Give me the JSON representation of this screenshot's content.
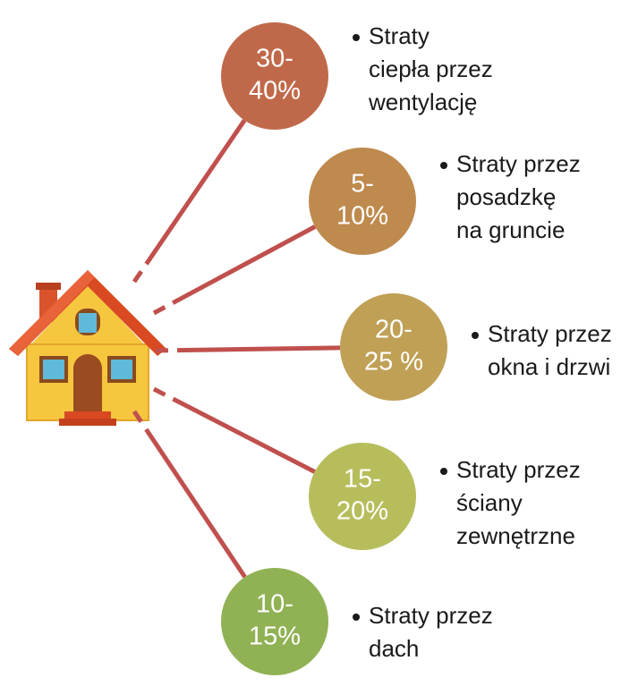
{
  "nodes": [
    {
      "percent": [
        "30-",
        "40%"
      ],
      "text": [
        "Straty",
        "ciepła przez",
        "wentylację"
      ]
    },
    {
      "percent": [
        "5-",
        "10%"
      ],
      "text": [
        "Straty przez",
        "posadzkę",
        "na gruncie"
      ]
    },
    {
      "percent": [
        "20-",
        "25 %"
      ],
      "text": [
        "Straty przez",
        "okna i drzwi"
      ]
    },
    {
      "percent": [
        "15-",
        "20%"
      ],
      "text": [
        "Straty przez",
        "ściany",
        "zewnętrzne"
      ]
    },
    {
      "percent": [
        "10-",
        "15%"
      ],
      "text": [
        "Straty przez",
        "dach"
      ]
    }
  ]
}
